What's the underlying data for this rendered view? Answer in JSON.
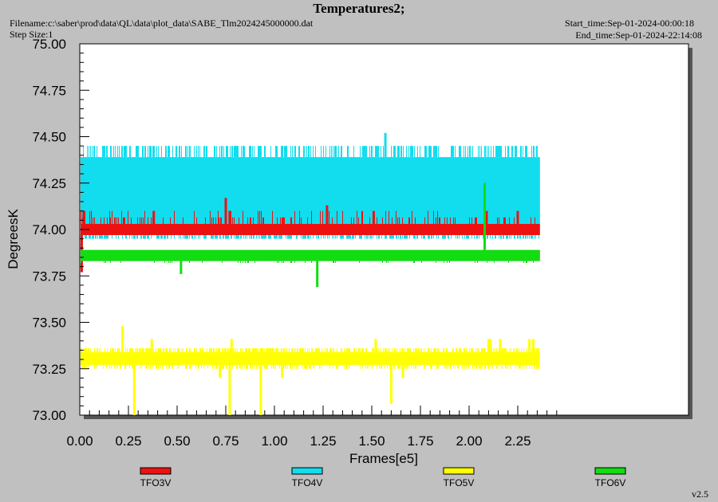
{
  "header": {
    "title": "Temperatures2;",
    "filename": "Filename:c:\\saber\\prod\\data\\QL\\data\\plot_data\\SABE_Tlm2024245000000.dat",
    "step_size": "Step Size:1",
    "start_time": "Start_time:Sep-01-2024-00:00:18",
    "end_time": "End_time:Sep-01-2024-22:14:08",
    "version": "v2.5"
  },
  "colors": {
    "background": "#c0c0c0",
    "plot_area": "#ffffff",
    "TFO3V": "#ee1111",
    "TFO4V": "#11ddee",
    "TFO5V": "#ffff00",
    "TFO6V": "#11dd11"
  },
  "chart_data": {
    "type": "line",
    "title": "Temperatures2;",
    "xlabel": "Frames[e5]",
    "ylabel": "DegreesK",
    "xlim": [
      0.0,
      2.5
    ],
    "ylim": [
      73.0,
      75.0
    ],
    "x_ticks": [
      "0.00",
      "0.25",
      "0.50",
      "0.75",
      "1.00",
      "1.25",
      "1.50",
      "1.75",
      "2.00",
      "2.25"
    ],
    "y_ticks": [
      "73.00",
      "73.25",
      "73.50",
      "73.75",
      "74.00",
      "74.25",
      "74.50",
      "74.75",
      "75.00"
    ],
    "x_range_data": [
      0.0,
      2.36
    ],
    "grid": false,
    "legend_position": "bottom",
    "series": [
      {
        "name": "TFO3V",
        "color": "#ee1111",
        "low": 73.97,
        "high": 74.03,
        "spike_top": 74.1,
        "spikes_up": [
          {
            "x": 0.02,
            "y": 74.1
          },
          {
            "x": 0.38,
            "y": 74.1
          },
          {
            "x": 0.75,
            "y": 74.17
          },
          {
            "x": 0.77,
            "y": 74.1
          },
          {
            "x": 1.27,
            "y": 74.13
          },
          {
            "x": 1.51,
            "y": 74.1
          },
          {
            "x": 2.09,
            "y": 74.1
          },
          {
            "x": 2.25,
            "y": 74.1
          }
        ],
        "spikes_down": [
          {
            "x": 0.01,
            "y": 73.77
          }
        ]
      },
      {
        "name": "TFO4V",
        "color": "#11ddee",
        "low": 74.03,
        "high": 74.39,
        "upper_burst": 74.45,
        "lower_burst": 73.95,
        "spikes_up": [
          {
            "x": 1.57,
            "y": 74.52
          }
        ],
        "spikes_down": []
      },
      {
        "name": "TFO5V",
        "color": "#ffff00",
        "low": 73.27,
        "high": 73.34,
        "spikes_up": [
          {
            "x": 0.22,
            "y": 73.48
          },
          {
            "x": 0.37,
            "y": 73.41
          },
          {
            "x": 0.78,
            "y": 73.41
          },
          {
            "x": 1.52,
            "y": 73.41
          },
          {
            "x": 2.1,
            "y": 73.41
          },
          {
            "x": 2.11,
            "y": 73.41
          },
          {
            "x": 2.16,
            "y": 73.41
          },
          {
            "x": 2.31,
            "y": 73.41
          },
          {
            "x": 2.33,
            "y": 73.41
          }
        ],
        "spikes_down": [
          {
            "x": 0.28,
            "y": 73.0
          },
          {
            "x": 0.72,
            "y": 73.2
          },
          {
            "x": 0.77,
            "y": 73.0
          },
          {
            "x": 0.93,
            "y": 73.0
          },
          {
            "x": 1.04,
            "y": 73.2
          },
          {
            "x": 1.6,
            "y": 73.06
          },
          {
            "x": 1.66,
            "y": 73.2
          }
        ]
      },
      {
        "name": "TFO6V",
        "color": "#11dd11",
        "low": 73.83,
        "high": 73.89,
        "spikes_up": [
          {
            "x": 2.08,
            "y": 74.25
          }
        ],
        "spikes_down": [
          {
            "x": 0.52,
            "y": 73.76
          },
          {
            "x": 1.22,
            "y": 73.69
          }
        ]
      }
    ]
  }
}
